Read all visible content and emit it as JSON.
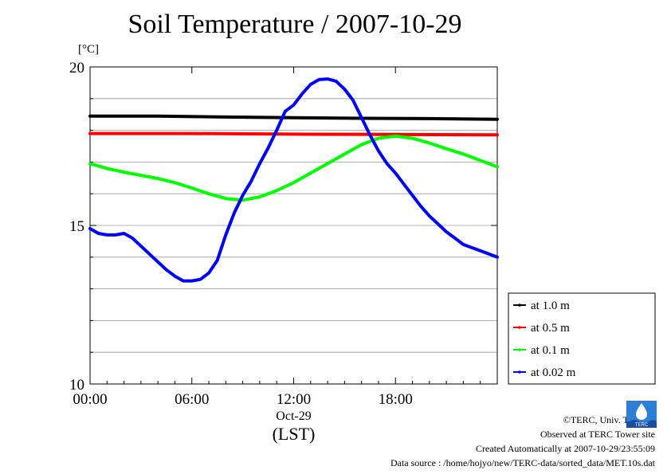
{
  "chart_data": {
    "type": "line",
    "title": "Soil Temperature / 2007-10-29",
    "ylabel": "[°C]",
    "xlabel": "(LST)",
    "x_date_label": "Oct-29",
    "x_ticks": [
      "00:00",
      "06:00",
      "12:00",
      "18:00"
    ],
    "y_ticks": [
      "10",
      "15",
      "20"
    ],
    "ylim": [
      10,
      20
    ],
    "xlim": [
      0,
      24
    ],
    "grid": true,
    "legend_position": "bottom-right outside",
    "series": [
      {
        "name": "at 1.0 m",
        "color": "#000000",
        "x": [
          0,
          4,
          8,
          12,
          16,
          20,
          24
        ],
        "y": [
          18.45,
          18.45,
          18.42,
          18.4,
          18.38,
          18.37,
          18.35
        ]
      },
      {
        "name": "at 0.5 m",
        "color": "#ff0000",
        "x": [
          0,
          6,
          12,
          18,
          24
        ],
        "y": [
          17.9,
          17.9,
          17.88,
          17.87,
          17.86
        ]
      },
      {
        "name": "at 0.1 m",
        "color": "#00ff00",
        "x": [
          0,
          1,
          2,
          3,
          4,
          5,
          6,
          7,
          8,
          9,
          10,
          11,
          12,
          13,
          14,
          15,
          16,
          17,
          18,
          19,
          20,
          21,
          22,
          23,
          24
        ],
        "y": [
          16.95,
          16.8,
          16.68,
          16.58,
          16.48,
          16.35,
          16.18,
          16.0,
          15.85,
          15.8,
          15.9,
          16.1,
          16.35,
          16.65,
          16.95,
          17.25,
          17.55,
          17.75,
          17.82,
          17.75,
          17.6,
          17.42,
          17.25,
          17.05,
          16.85
        ]
      },
      {
        "name": "at 0.02 m",
        "color": "#0000ff",
        "x": [
          0,
          0.5,
          1,
          1.5,
          2,
          2.5,
          3,
          3.5,
          4,
          4.5,
          5,
          5.5,
          6,
          6.5,
          7,
          7.5,
          8,
          8.5,
          9,
          9.5,
          10,
          10.5,
          11,
          11.5,
          12,
          12.5,
          13,
          13.5,
          14,
          14.5,
          15,
          15.5,
          16,
          16.5,
          17,
          17.5,
          18,
          18.5,
          19,
          19.5,
          20,
          20.5,
          21,
          21.5,
          22,
          22.5,
          23,
          23.5,
          24
        ],
        "y": [
          14.9,
          14.75,
          14.7,
          14.7,
          14.75,
          14.6,
          14.35,
          14.1,
          13.85,
          13.6,
          13.4,
          13.25,
          13.25,
          13.3,
          13.5,
          13.9,
          14.7,
          15.4,
          15.95,
          16.4,
          16.95,
          17.45,
          18.0,
          18.6,
          18.8,
          19.15,
          19.45,
          19.6,
          19.62,
          19.55,
          19.3,
          18.95,
          18.4,
          17.85,
          17.35,
          16.95,
          16.65,
          16.3,
          15.95,
          15.6,
          15.3,
          15.05,
          14.8,
          14.6,
          14.4,
          14.3,
          14.2,
          14.1,
          14.0
        ]
      }
    ]
  },
  "footer": {
    "copyright": "©TERC, Univ. Tsukuba",
    "observed": "Observed at TERC Tower site",
    "created": "Created Automatically at 2007-10-29/23:55:09",
    "source": "Data source : /home/hojyo/new/TERC-data/sorted_data/MET.10s.dat"
  },
  "logo_text": "TERC"
}
